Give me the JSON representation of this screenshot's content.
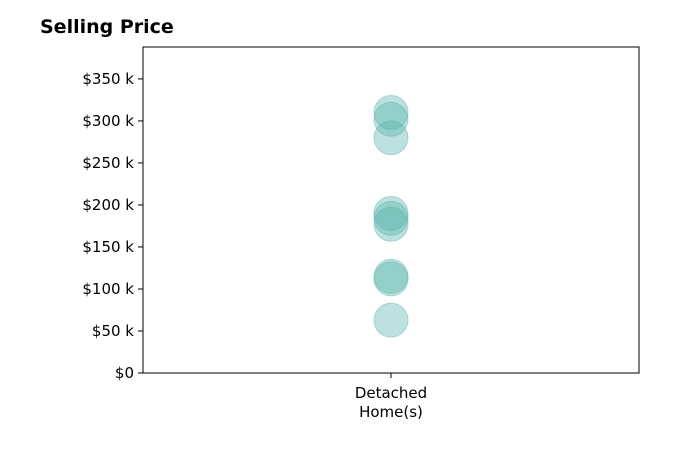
{
  "chart_data": {
    "type": "scatter",
    "title": "Selling Price",
    "xlabel": "",
    "ylabel": "",
    "categories": [
      "Detached\nHome(s)"
    ],
    "category_lines": [
      [
        "Detached",
        "Home(s)"
      ]
    ],
    "y_ticks": [
      {
        "value": 0,
        "label": "$0"
      },
      {
        "value": 50000,
        "label": "$50 k"
      },
      {
        "value": 100000,
        "label": "$100 k"
      },
      {
        "value": 150000,
        "label": "$150 k"
      },
      {
        "value": 200000,
        "label": "$200 k"
      },
      {
        "value": 250000,
        "label": "$250 k"
      },
      {
        "value": 300000,
        "label": "$300 k"
      },
      {
        "value": 350000,
        "label": "$350 k"
      }
    ],
    "ylim": [
      0,
      388000
    ],
    "grid": false,
    "series": [
      {
        "category": "Detached\nHome(s)",
        "values": [
          63000,
          112000,
          115000,
          177000,
          184000,
          190000,
          280000,
          302000,
          310000
        ]
      }
    ],
    "marker_color": "#5ab4ac"
  }
}
